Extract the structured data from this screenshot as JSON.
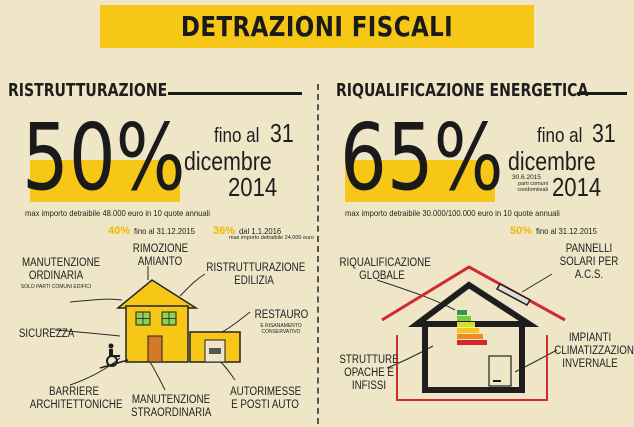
{
  "header": {
    "title": "DETRAZIONI FISCALI"
  },
  "left": {
    "title": "RISTRUTTURAZIONE",
    "big_percent": "50%",
    "fino_al": "fino al",
    "day": "31",
    "month": "dicembre",
    "year": "2014",
    "max_importo": "max importo detraibile 48.000 euro in 10 quote annuali",
    "pct_a": "40%",
    "pct_a_text": "fino al 31.12.2015",
    "pct_b": "36%",
    "pct_b_text": "dal 1.1.2016",
    "pct_b_sub": "max importo detraibile 24.000 euro",
    "labels": {
      "manutenzione_ordinaria": "MANUTENZIONE ORDINARIA",
      "manutenzione_ordinaria_sub": "SOLO PARTI COMUNI EDIFICI",
      "rimozione_amianto": "RIMOZIONE AMIANTO",
      "ristrutturazione_edilizia": "RISTRUTTURAZIONE EDILIZIA",
      "sicurezza": "SICUREZZA",
      "restauro": "RESTAURO",
      "restauro_sub": "E RISANAMENTO CONSERVATIVO",
      "barriere": "BARRIERE ARCHITETTONICHE",
      "manutenzione_straordinaria": "MANUTENZIONE STRAORDINARIA",
      "autorimesse": "AUTORIMESSE E POSTI AUTO"
    }
  },
  "right": {
    "title": "RIQUALIFICAZIONE ENERGETICA",
    "big_percent": "65%",
    "fino_al": "fino al",
    "day": "31",
    "month": "dicembre",
    "year": "2014",
    "sub_date": "30.6.2015",
    "sub_text": "parti comuni condominiali",
    "max_importo": "max importo detraibile 30.000/100.000 euro in 10 quote annuali",
    "pct_a": "50%",
    "pct_a_text": "fino al 31.12.2015",
    "labels": {
      "riqualificazione": "RIQUALIFICAZIONE GLOBALE",
      "pannelli": "PANNELLI SOLARI PER A.C.S.",
      "impianti": "IMPIANTI CLIMATIZZAZIONE INVERNALE",
      "strutture": "STRUTTURE OPACHE E INFISSI"
    }
  },
  "colors": {
    "accent": "#f6c716",
    "background": "#efe6c8",
    "ink": "#1a1a1a",
    "red": "#d2282e"
  }
}
